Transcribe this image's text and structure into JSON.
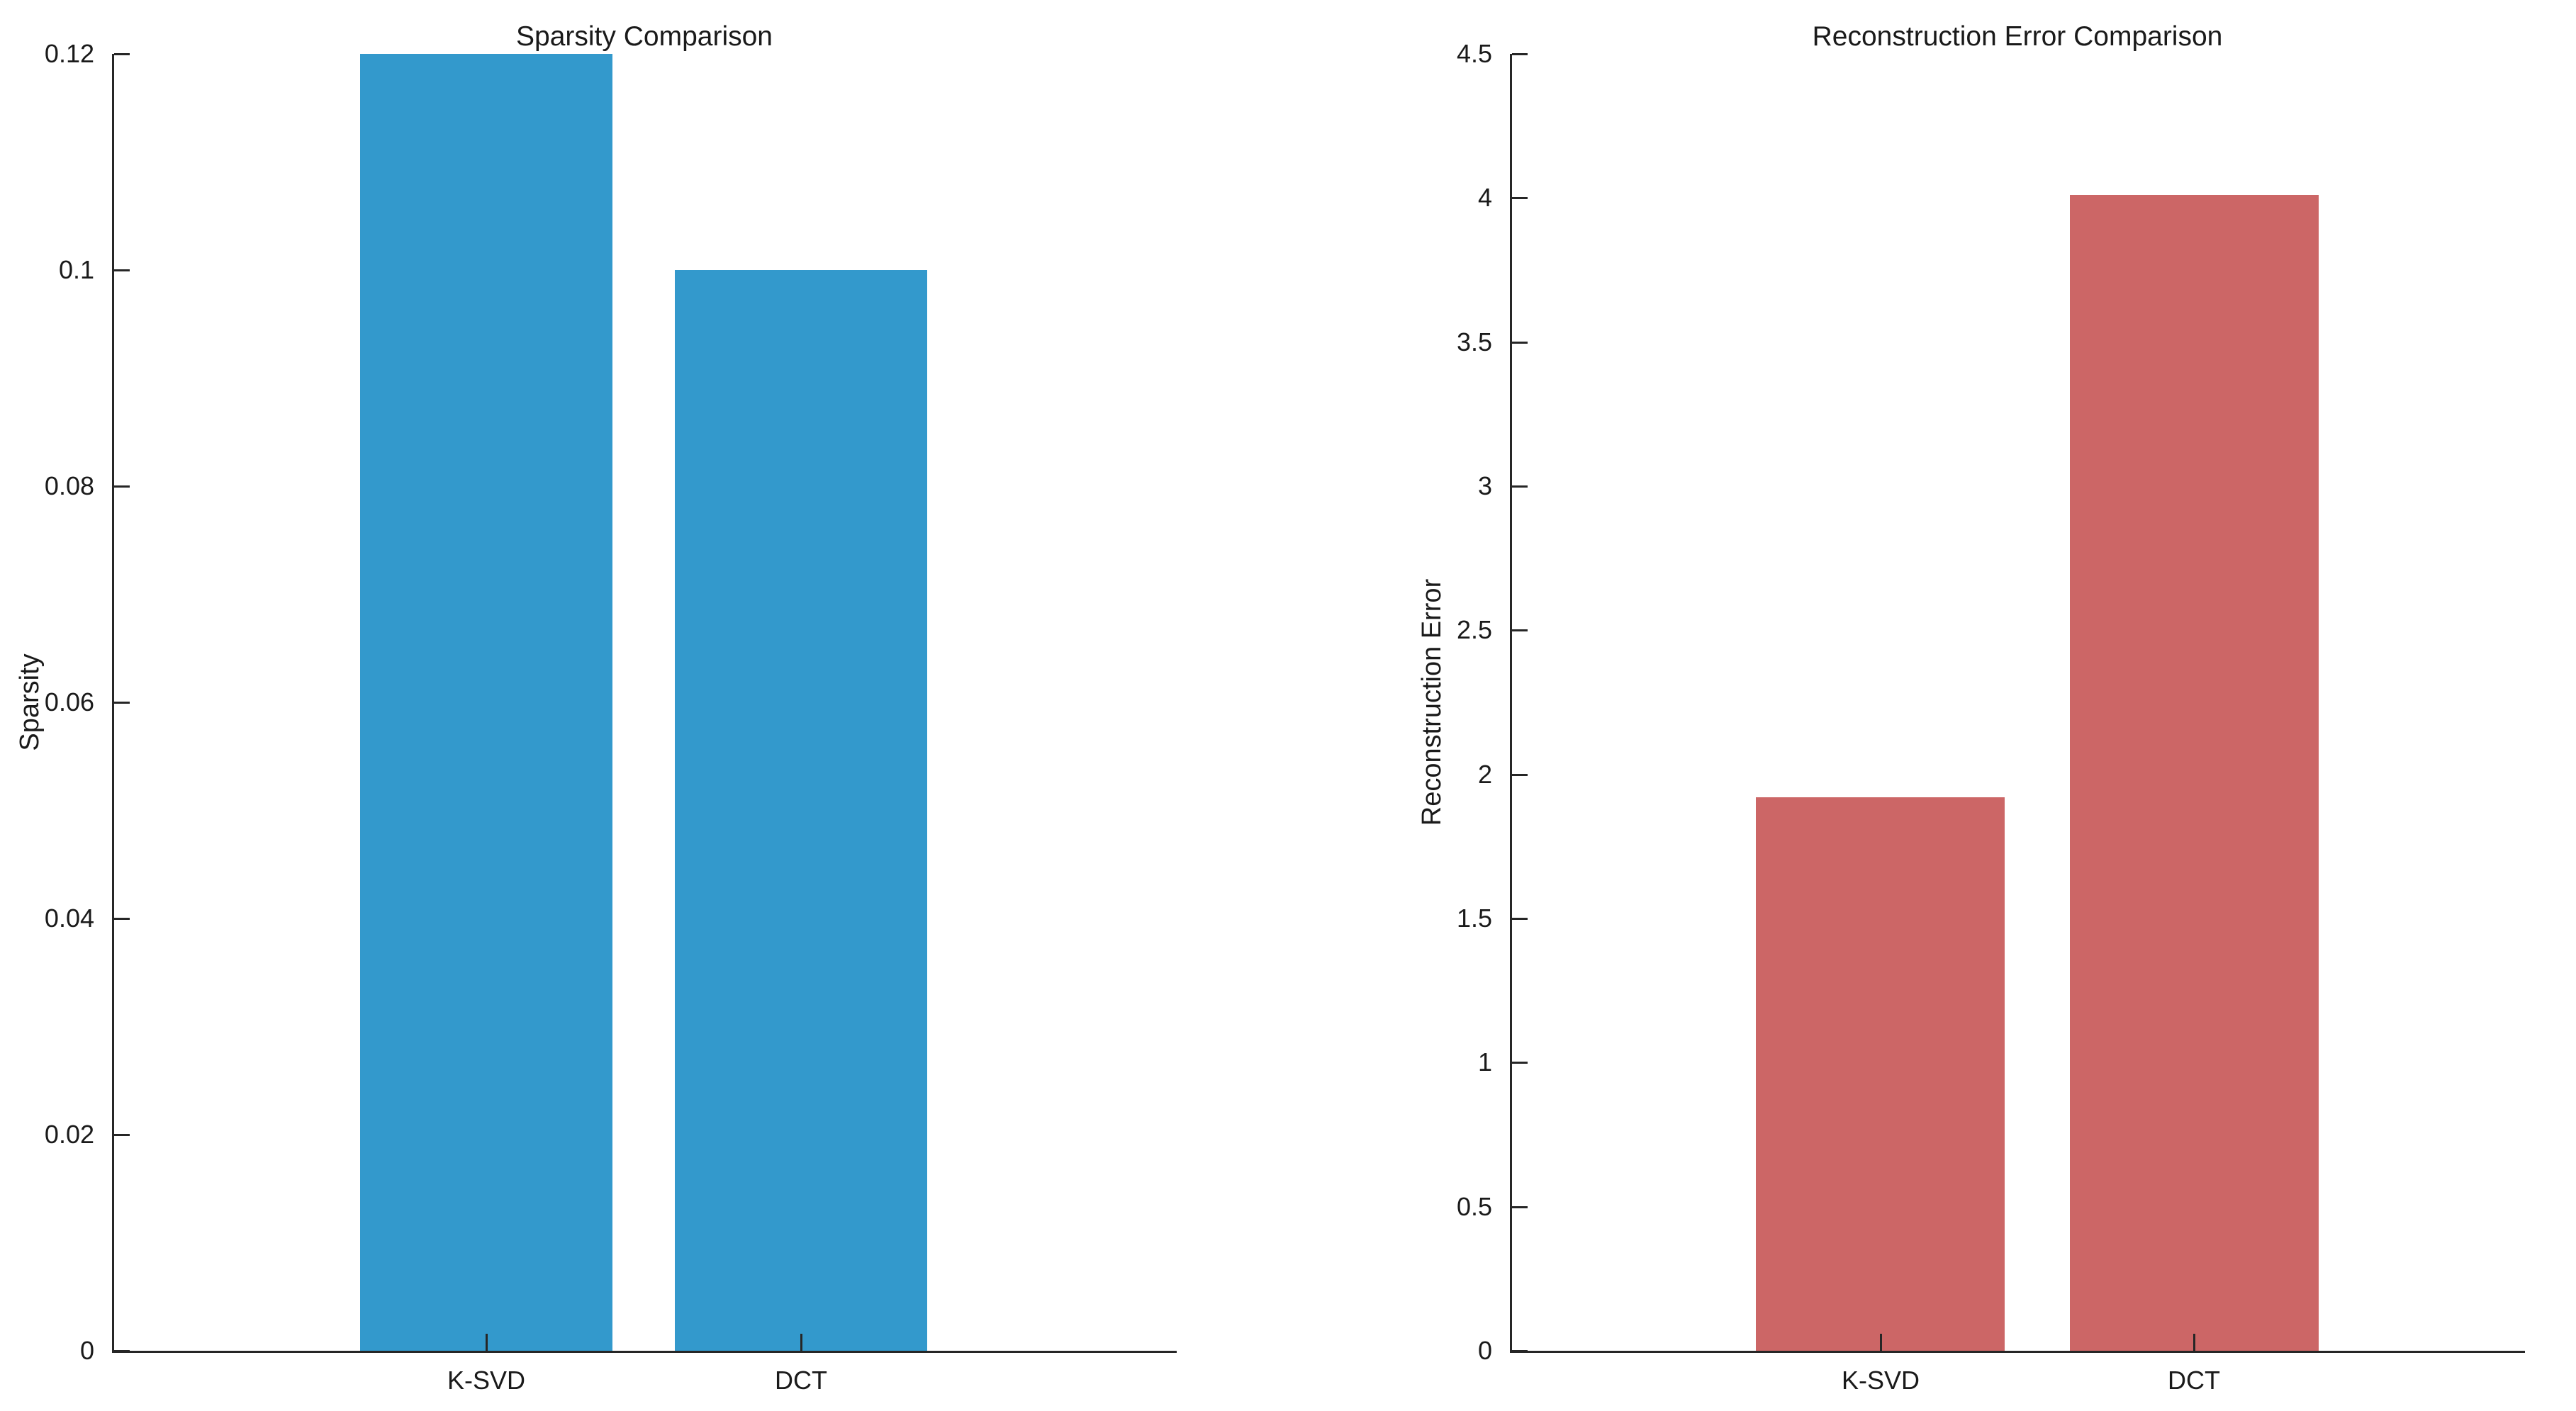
{
  "figure": {
    "background": "#ffffff",
    "axis_color": "#262626",
    "text_color": "#1a1a1a"
  },
  "chart_data": [
    {
      "type": "bar",
      "title": "Sparsity Comparison",
      "ylabel": "Sparsity",
      "xlabel": "",
      "categories": [
        "K-SVD",
        "DCT"
      ],
      "values": [
        0.12,
        0.1
      ],
      "bar_color": "#3399cc",
      "ylim": [
        0,
        0.12
      ],
      "ytick_values": [
        0,
        0.02,
        0.04,
        0.06,
        0.08,
        0.1,
        0.12
      ],
      "ytick_labels": [
        "0",
        "0.02",
        "0.04",
        "0.06",
        "0.08",
        "0.1",
        "0.12"
      ],
      "grid": false,
      "legend": "none"
    },
    {
      "type": "bar",
      "title": "Reconstruction Error Comparison",
      "ylabel": "Reconstruction Error",
      "xlabel": "",
      "categories": [
        "K-SVD",
        "DCT"
      ],
      "values": [
        1.92,
        4.01
      ],
      "bar_color": "#cc6666",
      "ylim": [
        0,
        4.5
      ],
      "ytick_values": [
        0,
        0.5,
        1,
        1.5,
        2,
        2.5,
        3,
        3.5,
        4,
        4.5
      ],
      "ytick_labels": [
        "0",
        "0.5",
        "1",
        "1.5",
        "2",
        "2.5",
        "3",
        "3.5",
        "4",
        "4.5"
      ],
      "grid": false,
      "legend": "none"
    }
  ]
}
